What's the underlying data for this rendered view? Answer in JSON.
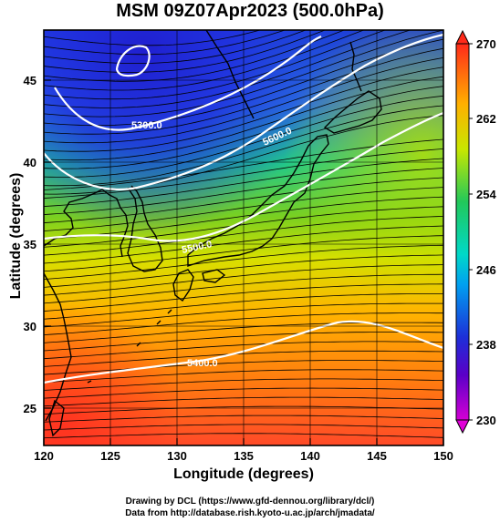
{
  "title": "MSM 09Z07Apr2023 (500.0hPa)",
  "xlabel": "Longitude (degrees)",
  "ylabel": "Latitude  (degrees)",
  "credits": {
    "line1": "Drawing by DCL (https://www.gfd-dennou.org/library/dcl/)",
    "line2": "Data from http://database.rish.kyoto-u.ac.jp/arch/jmadata/"
  },
  "map": {
    "lon_range": [
      120,
      150
    ],
    "lat_range": [
      22.4,
      47.6
    ],
    "lon_ticks": [
      "120",
      "125",
      "130",
      "135",
      "140",
      "145",
      "150"
    ],
    "lat_ticks": [
      "25",
      "30",
      "35",
      "40",
      "45"
    ],
    "contour_labels": [
      "5300.0",
      "5400.0",
      "5500.0",
      "5600.0"
    ],
    "field": "temperature (K)",
    "overlay": [
      "geopotential height contours (white)",
      "wind streamlines (black)",
      "coastlines (black)"
    ]
  },
  "colorbar": {
    "ticks": [
      "230",
      "238",
      "246",
      "254",
      "262",
      "270"
    ],
    "min": 230,
    "max": 270,
    "colors": [
      "#d400d4",
      "#1d2fd8",
      "#00c8e8",
      "#22c85a",
      "#c8e600",
      "#ff8c00",
      "#ff2a1a"
    ]
  }
}
